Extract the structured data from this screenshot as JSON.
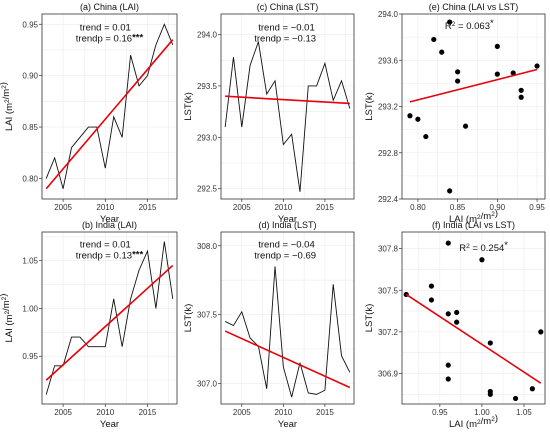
{
  "chart_data": [
    {
      "id": "a",
      "type": "line",
      "title": "(a) China (LAI)",
      "xlabel": "Year",
      "ylabel": "LAI (m²/m²)",
      "xlim": [
        2002.5,
        2018.5
      ],
      "ylim": [
        0.78,
        0.96
      ],
      "xticks": [
        2005,
        2010,
        2015
      ],
      "yticks": [
        0.8,
        0.85,
        0.9,
        0.95
      ],
      "ytick_labels": [
        "0.80",
        "0.85",
        "0.90",
        "0.95"
      ],
      "series": [
        {
          "x": [
            2003,
            2004,
            2005,
            2006,
            2007,
            2008,
            2009,
            2010,
            2011,
            2012,
            2013,
            2014,
            2015,
            2016,
            2017,
            2018
          ],
          "y": [
            0.8,
            0.82,
            0.79,
            0.83,
            0.84,
            0.85,
            0.85,
            0.81,
            0.86,
            0.84,
            0.92,
            0.89,
            0.9,
            0.93,
            0.95,
            0.93
          ]
        }
      ],
      "trend_line": {
        "x": [
          2003,
          2018
        ],
        "y": [
          0.79,
          0.935
        ]
      },
      "annotations": [
        "trend = 0.01",
        "trendp = 0.16",
        "***"
      ]
    },
    {
      "id": "c",
      "type": "line",
      "title": "(c) China (LST)",
      "xlabel": "Year",
      "ylabel": "LST(k)",
      "xlim": [
        2002.5,
        2018.5
      ],
      "ylim": [
        292.4,
        294.2
      ],
      "xticks": [
        2005,
        2010,
        2015
      ],
      "yticks": [
        292.5,
        293.0,
        293.5,
        294.0
      ],
      "ytick_labels": [
        "292.5",
        "293.0",
        "293.5",
        "294.0"
      ],
      "series": [
        {
          "x": [
            2003,
            2004,
            2005,
            2006,
            2007,
            2008,
            2009,
            2010,
            2011,
            2012,
            2013,
            2014,
            2015,
            2016,
            2017,
            2018
          ],
          "y": [
            293.1,
            293.78,
            293.1,
            293.7,
            293.93,
            293.42,
            293.55,
            292.93,
            293.03,
            292.47,
            293.5,
            293.5,
            293.72,
            293.36,
            293.55,
            293.28
          ]
        }
      ],
      "trend_line": {
        "x": [
          2003,
          2018
        ],
        "y": [
          293.4,
          293.33
        ]
      },
      "annotations": [
        "trend = −0.01",
        "trendp = −0.13"
      ]
    },
    {
      "id": "e",
      "type": "scatter",
      "title": "(e) China (LAI vs LST)",
      "xlabel": "LAI (m²/m²)",
      "ylabel": "LST(k)",
      "xlim": [
        0.78,
        0.96
      ],
      "ylim": [
        292.4,
        294.0
      ],
      "xticks": [
        0.8,
        0.85,
        0.9,
        0.95
      ],
      "yticks": [
        292.4,
        292.8,
        293.2,
        293.6,
        294.0
      ],
      "xtick_labels": [
        "0.80",
        "0.85",
        "0.90",
        "0.95"
      ],
      "ytick_labels": [
        "292.4",
        "292.8",
        "293.2",
        "293.6",
        "294.0"
      ],
      "series": [
        {
          "x": [
            0.79,
            0.8,
            0.81,
            0.82,
            0.83,
            0.84,
            0.84,
            0.85,
            0.85,
            0.86,
            0.9,
            0.9,
            0.92,
            0.93,
            0.93,
            0.95
          ],
          "y": [
            293.12,
            293.09,
            292.94,
            293.78,
            293.67,
            292.47,
            293.93,
            293.5,
            293.42,
            293.03,
            293.72,
            293.48,
            293.49,
            293.34,
            293.28,
            293.55
          ]
        }
      ],
      "trend_line": {
        "x": [
          0.79,
          0.95
        ],
        "y": [
          293.24,
          293.52
        ]
      },
      "annotations": [
        "R",
        "2",
        " = 0.063",
        "*"
      ]
    },
    {
      "id": "b",
      "type": "line",
      "title": "(b) India (LAI)",
      "xlabel": "Year",
      "ylabel": "LAI (m²/m²)",
      "xlim": [
        2002.5,
        2018.5
      ],
      "ylim": [
        0.9,
        1.08
      ],
      "xticks": [
        2005,
        2010,
        2015
      ],
      "yticks": [
        0.95,
        1.0,
        1.05
      ],
      "ytick_labels": [
        "0.95",
        "1.00",
        "1.05"
      ],
      "series": [
        {
          "x": [
            2003,
            2004,
            2005,
            2006,
            2007,
            2008,
            2009,
            2010,
            2011,
            2012,
            2013,
            2014,
            2015,
            2016,
            2017,
            2018
          ],
          "y": [
            0.91,
            0.94,
            0.94,
            0.97,
            0.97,
            0.96,
            0.96,
            0.96,
            1.01,
            0.96,
            1.01,
            1.04,
            1.06,
            1.0,
            1.07,
            1.01
          ]
        }
      ],
      "trend_line": {
        "x": [
          2003,
          2018
        ],
        "y": [
          0.925,
          1.045
        ]
      },
      "annotations": [
        "trend = 0.01",
        "trendp = 0.13",
        "***"
      ]
    },
    {
      "id": "d",
      "type": "line",
      "title": "(d) India (LST)",
      "xlabel": "Year",
      "ylabel": "LST(k)",
      "xlim": [
        2002.5,
        2018.5
      ],
      "ylim": [
        306.85,
        308.1
      ],
      "xticks": [
        2005,
        2010,
        2015
      ],
      "yticks": [
        307.0,
        307.5,
        308.0
      ],
      "ytick_labels": [
        "307.0",
        "307.5",
        "308.0"
      ],
      "series": [
        {
          "x": [
            2003,
            2004,
            2005,
            2006,
            2007,
            2008,
            2009,
            2010,
            2011,
            2012,
            2013,
            2014,
            2015,
            2016,
            2017,
            2018
          ],
          "y": [
            307.45,
            307.42,
            307.52,
            307.33,
            307.27,
            306.96,
            307.85,
            307.12,
            306.9,
            307.15,
            306.93,
            306.92,
            306.95,
            307.72,
            307.2,
            307.08
          ]
        }
      ],
      "trend_line": {
        "x": [
          2003,
          2018
        ],
        "y": [
          307.38,
          306.97
        ]
      },
      "annotations": [
        "trend = −0.04",
        "trendp = −0.69"
      ]
    },
    {
      "id": "f",
      "type": "scatter",
      "title": "(f) India (LAI vs LST)",
      "xlabel": "LAI (m²/m²)",
      "ylabel": "LST(k)",
      "xlim": [
        0.905,
        1.075
      ],
      "ylim": [
        306.68,
        307.92
      ],
      "xticks": [
        0.95,
        1.0,
        1.05
      ],
      "yticks": [
        306.9,
        307.2,
        307.5,
        307.8
      ],
      "xtick_labels": [
        "0.95",
        "1.00",
        "1.05"
      ],
      "ytick_labels": [
        "306.9",
        "307.2",
        "307.5",
        "307.8"
      ],
      "series": [
        {
          "x": [
            0.91,
            0.94,
            0.94,
            0.96,
            0.96,
            0.96,
            0.96,
            0.97,
            0.97,
            1.0,
            1.01,
            1.01,
            1.01,
            1.04,
            1.06,
            1.07
          ],
          "y": [
            307.47,
            307.53,
            307.43,
            307.84,
            307.33,
            306.96,
            306.86,
            307.34,
            307.27,
            307.72,
            307.12,
            306.77,
            306.75,
            306.72,
            306.79,
            307.2
          ]
        }
      ],
      "trend_line": {
        "x": [
          0.91,
          1.07
        ],
        "y": [
          307.47,
          306.83
        ]
      },
      "annotations": [
        "R",
        "2",
        " = 0.254",
        "*"
      ]
    }
  ]
}
